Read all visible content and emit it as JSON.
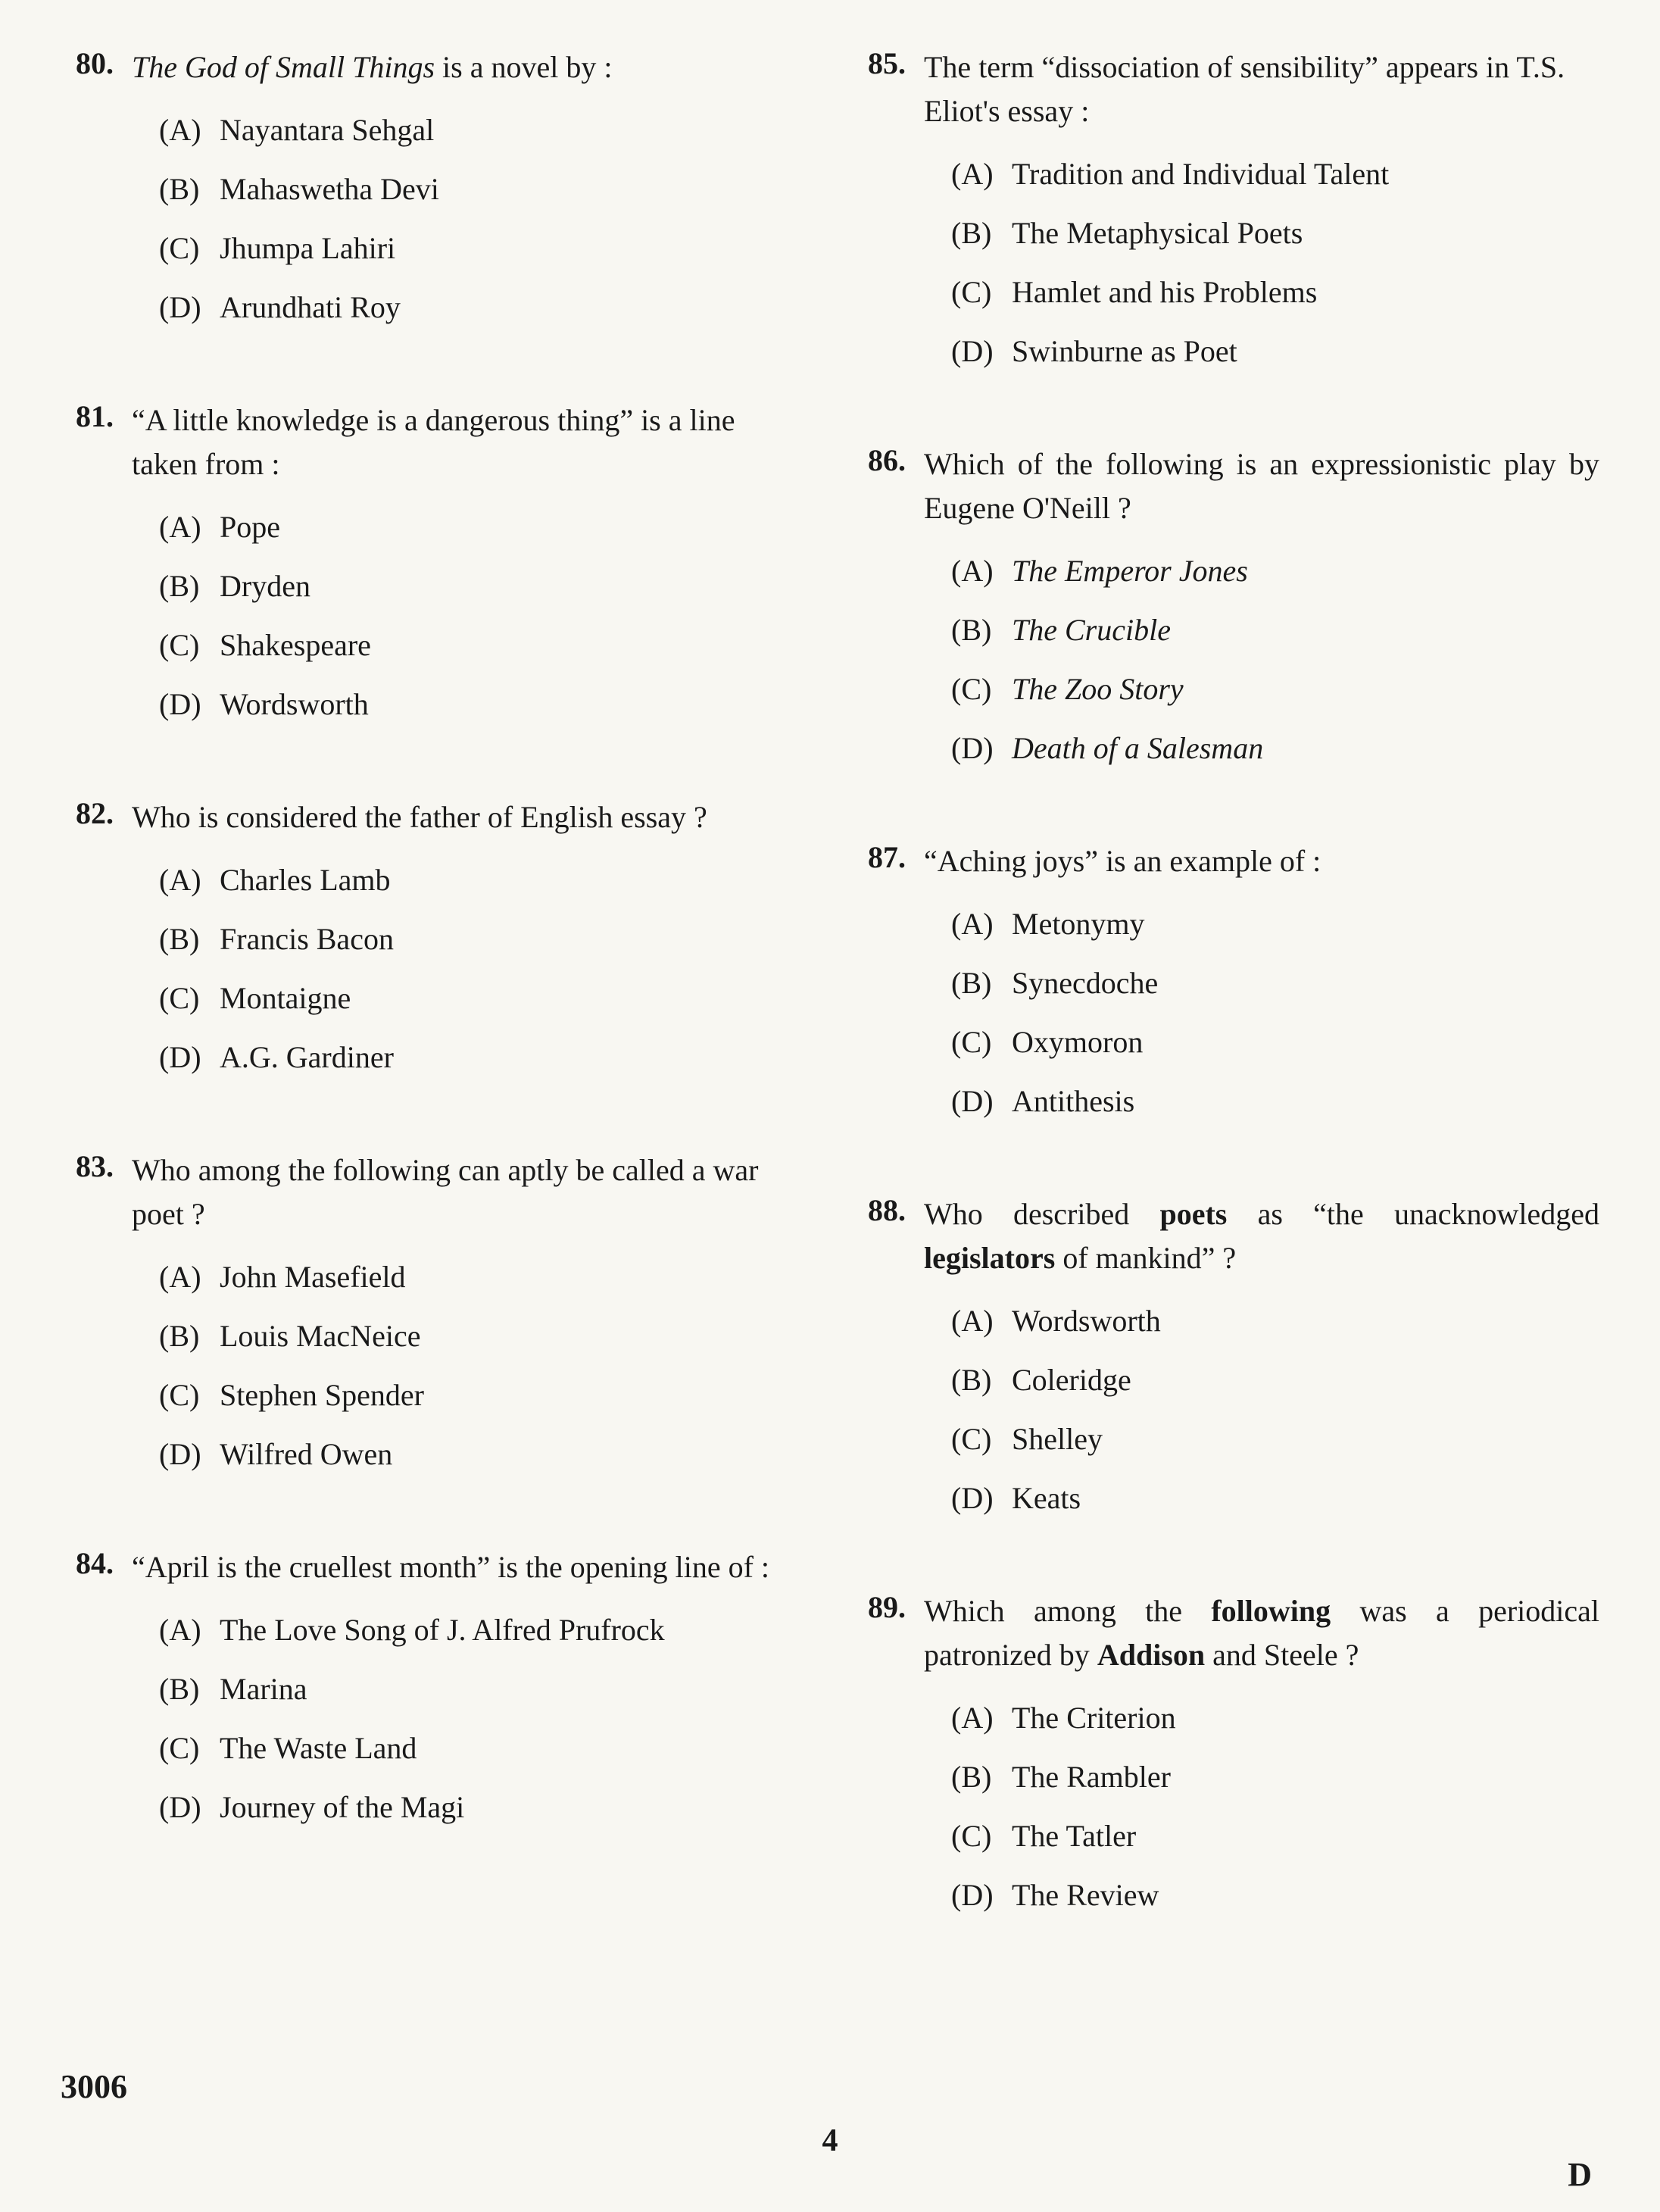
{
  "leftColumn": [
    {
      "number": "80.",
      "text_html": "<span class='italic'>The God of Small Things</span> is a novel by :",
      "options": [
        {
          "label": "(A)",
          "text": "Nayantara Sehgal"
        },
        {
          "label": "(B)",
          "text": "Mahaswetha Devi"
        },
        {
          "label": "(C)",
          "text": "Jhumpa Lahiri"
        },
        {
          "label": "(D)",
          "text": "Arundhati Roy"
        }
      ]
    },
    {
      "number": "81.",
      "text_html": "“A little knowledge is a dangerous thing” is a line taken from :",
      "options": [
        {
          "label": "(A)",
          "text": "Pope"
        },
        {
          "label": "(B)",
          "text": "Dryden"
        },
        {
          "label": "(C)",
          "text": "Shakespeare"
        },
        {
          "label": "(D)",
          "text": "Wordsworth"
        }
      ]
    },
    {
      "number": "82.",
      "text_html": "Who is considered the father of English essay ?",
      "options": [
        {
          "label": "(A)",
          "text": "Charles Lamb"
        },
        {
          "label": "(B)",
          "text": "Francis Bacon"
        },
        {
          "label": "(C)",
          "text": "Montaigne"
        },
        {
          "label": "(D)",
          "text": "A.G. Gardiner"
        }
      ]
    },
    {
      "number": "83.",
      "text_html": "Who among the following can aptly be called a war poet ?",
      "options": [
        {
          "label": "(A)",
          "text": "John Masefield"
        },
        {
          "label": "(B)",
          "text": "Louis MacNeice"
        },
        {
          "label": "(C)",
          "text": "Stephen Spender"
        },
        {
          "label": "(D)",
          "text": "Wilfred Owen"
        }
      ]
    },
    {
      "number": "84.",
      "text_html": "“April is the cruellest month” is the opening line of :",
      "options": [
        {
          "label": "(A)",
          "text": "The Love Song of J. Alfred Prufrock"
        },
        {
          "label": "(B)",
          "text": "Marina"
        },
        {
          "label": "(C)",
          "text": "The Waste Land"
        },
        {
          "label": "(D)",
          "text": "Journey of the Magi"
        }
      ]
    }
  ],
  "rightColumn": [
    {
      "number": "85.",
      "text_html": "The term “dissociation of sensibility” appears in T.S. Eliot's essay :",
      "options": [
        {
          "label": "(A)",
          "text": "Tradition and Individual Talent"
        },
        {
          "label": "(B)",
          "text": "The Metaphysical Poets"
        },
        {
          "label": "(C)",
          "text": "Hamlet and his Problems"
        },
        {
          "label": "(D)",
          "text": "Swinburne as Poet"
        }
      ]
    },
    {
      "number": "86.",
      "text_html": "Which of the following is an expressionistic play by Eugene O'Neill ?",
      "justify": true,
      "options": [
        {
          "label": "(A)",
          "text_html": "<span class='italic'>The Emperor Jones</span>"
        },
        {
          "label": "(B)",
          "text_html": "<span class='italic'>The Crucible</span>"
        },
        {
          "label": "(C)",
          "text_html": "<span class='italic'>The Zoo Story</span>"
        },
        {
          "label": "(D)",
          "text_html": "<span class='italic'>Death of a Salesman</span>"
        }
      ]
    },
    {
      "number": "87.",
      "text_html": "“Aching joys” is an example of :",
      "options": [
        {
          "label": "(A)",
          "text": "Metonymy"
        },
        {
          "label": "(B)",
          "text": "Synecdoche"
        },
        {
          "label": "(C)",
          "text": "Oxymoron"
        },
        {
          "label": "(D)",
          "text": "Antithesis"
        }
      ]
    },
    {
      "number": "88.",
      "text_html": "Who described <span class='bold'>poets</span> as “the unacknowledged <span class='bold'>legislators</span> of mankind” ?",
      "justify": true,
      "options": [
        {
          "label": "(A)",
          "text": "Wordsworth"
        },
        {
          "label": "(B)",
          "text": "Coleridge"
        },
        {
          "label": "(C)",
          "text": "Shelley"
        },
        {
          "label": "(D)",
          "text": "Keats"
        }
      ]
    },
    {
      "number": "89.",
      "text_html": "Which among the <span class='bold'>following</span> was a periodical patronized by <span class='bold'>Addison</span> and Steele ?",
      "justify": true,
      "options": [
        {
          "label": "(A)",
          "text": "The Criterion"
        },
        {
          "label": "(B)",
          "text": "The Rambler"
        },
        {
          "label": "(C)",
          "text": "The Tatler"
        },
        {
          "label": "(D)",
          "text": "The Review"
        }
      ]
    }
  ],
  "footer": {
    "code": "3006",
    "page": "4",
    "letter": "D"
  }
}
